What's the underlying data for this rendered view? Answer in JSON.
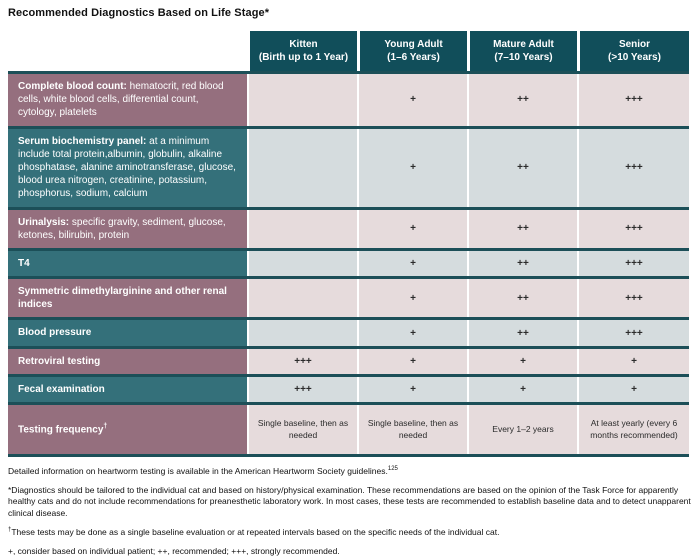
{
  "title": "Recommended Diagnostics Based on Life Stage*",
  "table": {
    "columns": [
      {
        "name": "Kitten",
        "range": "(Birth up to 1 Year)"
      },
      {
        "name": "Young Adult",
        "range": "(1–6 Years)"
      },
      {
        "name": "Mature Adult",
        "range": "(7–10 Years)"
      },
      {
        "name": "Senior",
        "range": "(>10 Years)"
      }
    ],
    "rows": [
      {
        "label_bold": "Complete blood count:",
        "label_rest": " hematocrit, red blood cells, white blood cells, differential count, cytology, platelets",
        "values": [
          "",
          "+",
          "++",
          "+++"
        ]
      },
      {
        "label_bold": "Serum biochemistry panel:",
        "label_rest": " at a minimum include total protein,albumin, globulin, alkaline phosphatase, alanine aminotransferase, glucose, blood urea nitrogen, creatinine, potassium, phosphorus, sodium, calcium",
        "values": [
          "",
          "+",
          "++",
          "+++"
        ]
      },
      {
        "label_bold": "Urinalysis:",
        "label_rest": " specific gravity, sediment, glucose, ketones, bilirubin, protein",
        "values": [
          "",
          "+",
          "++",
          "+++"
        ]
      },
      {
        "label_bold": "T4",
        "label_rest": "",
        "values": [
          "",
          "+",
          "++",
          "+++"
        ]
      },
      {
        "label_bold": "Symmetric dimethylarginine and other renal indices",
        "label_rest": "",
        "values": [
          "",
          "+",
          "++",
          "+++"
        ]
      },
      {
        "label_bold": "Blood pressure",
        "label_rest": "",
        "values": [
          "",
          "+",
          "++",
          "+++"
        ]
      },
      {
        "label_bold": "Retroviral testing",
        "label_rest": "",
        "values": [
          "+++",
          "+",
          "+",
          "+"
        ]
      },
      {
        "label_bold": "Fecal examination",
        "label_rest": "",
        "values": [
          "+++",
          "+",
          "+",
          "+"
        ]
      },
      {
        "label_bold": "Testing frequency",
        "label_sup": "†",
        "label_rest": "",
        "values": [
          "Single baseline, then as needed",
          "Single baseline, then as needed",
          "Every 1–2 years",
          "At least yearly (every 6 months recommended)"
        ]
      }
    ]
  },
  "footnotes": {
    "heartworm": {
      "text": "Detailed information on heartworm testing is available in the American Heartworm Society guidelines.",
      "sup": "125"
    },
    "asterisk": "*Diagnostics should be tailored to the individual cat and based on history/physical examination. These recommendations are based on the opinion of the Task Force for apparently healthy cats and do not include recommendations for preanesthetic laboratory work. In most cases, these tests are recommended to establish baseline data and to detect unapparent clinical disease.",
    "dagger": {
      "sup": "†",
      "text": "These tests may be done as a single baseline evaluation or at repeated intervals based on the specific needs of the individual cat."
    },
    "key": "+, consider based on individual patient; ++, recommended; +++, strongly recommended."
  },
  "colors": {
    "header_bg": "#114e5a",
    "row_label_mauve": "#956f7e",
    "row_label_teal": "#34707a",
    "cell_pink": "#e6dbdc",
    "cell_blue": "#d5dcde",
    "separator": "#1c4f58"
  }
}
